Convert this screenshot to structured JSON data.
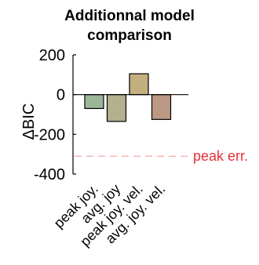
{
  "chart_data": {
    "type": "bar",
    "title_lines": [
      "Additionnal model",
      "comparison"
    ],
    "ylabel": "ΔBIC",
    "xlabel": "",
    "categories": [
      "peak joy.",
      "avg. joy",
      "peak joy. vel.",
      "avg. joy. vel."
    ],
    "values": [
      -70,
      -135,
      105,
      -125
    ],
    "bar_colors": [
      "#9bb79a",
      "#b3b08f",
      "#c4b07e",
      "#bc9985"
    ],
    "ylim": [
      -400,
      200
    ],
    "yticks": [
      200,
      0,
      -200,
      -400
    ],
    "ytick_labels": [
      "200",
      "0",
      "-200",
      "-400"
    ],
    "reference_line": {
      "value": -310,
      "label": "peak err.",
      "color": "#e8303a"
    },
    "grid": false,
    "legend": "none"
  }
}
